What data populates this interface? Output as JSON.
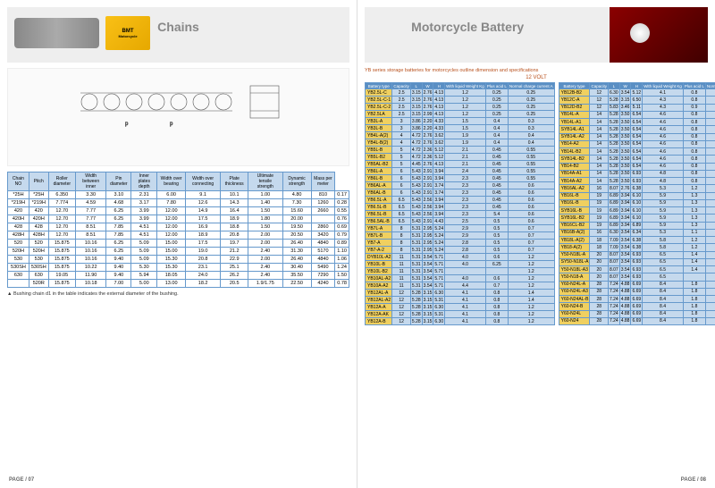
{
  "left": {
    "title": "Chains",
    "logo_main": "BMT",
    "logo_sub": "Motorcycle",
    "chain_headers": [
      "Chain NO",
      "Pitch",
      "Roller diameter",
      "Width between inner",
      "Pin diameter",
      "Inner plates depth",
      "Width over bearing",
      "Width over connecting",
      "Plate thickness",
      "Ultimate tensile strength",
      "Dynamic strength",
      "Mass per meter"
    ],
    "chain_sub": [
      "ISO JCAS",
      "MBT",
      "p",
      "d1 max",
      "Plates B1 min",
      "d2 max",
      "h2 max",
      "Pins L max",
      "Pins Lc max",
      "t/T",
      "Fu min kN",
      "Fd min N",
      "q kg/m"
    ],
    "chain_units": [
      "",
      "",
      "mm",
      "mm",
      "mm",
      "mm",
      "mm",
      "mm",
      "mm",
      "mm",
      "",
      "",
      ""
    ],
    "chain_rows": [
      [
        "*25H",
        "*25H",
        "6.350",
        "3.30",
        "3.10",
        "2.31",
        "6.00",
        "9.1",
        "10.1",
        "1.00",
        "4.80",
        "810",
        "0.17"
      ],
      [
        "*219H",
        "*219H",
        "7.774",
        "4.59",
        "4.68",
        "3.17",
        "7.80",
        "12.6",
        "14.3",
        "1.40",
        "7.30",
        "1260",
        "0.28"
      ],
      [
        "420",
        "420",
        "12.70",
        "7.77",
        "6.25",
        "3.99",
        "12.00",
        "14.9",
        "16.4",
        "1.50",
        "15.60",
        "2660",
        "0.55"
      ],
      [
        "420H",
        "420H",
        "12.70",
        "7.77",
        "6.25",
        "3.99",
        "12.00",
        "17.5",
        "18.9",
        "1.80",
        "20.00",
        "",
        "0.76"
      ],
      [
        "428",
        "428",
        "12.70",
        "8.51",
        "7.85",
        "4.51",
        "12.00",
        "16.9",
        "18.8",
        "1.50",
        "19.50",
        "2860",
        "0.69"
      ],
      [
        "428H",
        "428H",
        "12.70",
        "8.51",
        "7.85",
        "4.51",
        "12.00",
        "18.9",
        "20.8",
        "2.00",
        "20.50",
        "3420",
        "0.79"
      ],
      [
        "520",
        "520",
        "15.875",
        "10.16",
        "6.25",
        "5.09",
        "15.00",
        "17.5",
        "19.7",
        "2.00",
        "26.40",
        "4840",
        "0.89"
      ],
      [
        "520H",
        "520H",
        "15.875",
        "10.16",
        "6.25",
        "5.09",
        "15.00",
        "19.0",
        "21.2",
        "2.40",
        "31.30",
        "5170",
        "1.10"
      ],
      [
        "530",
        "530",
        "15.875",
        "10.16",
        "9.40",
        "5.09",
        "15.30",
        "20.8",
        "22.9",
        "2.00",
        "26.40",
        "4840",
        "1.06"
      ],
      [
        "530SH",
        "530SH",
        "15.875",
        "10.22",
        "9.40",
        "5.30",
        "15.30",
        "23.1",
        "25.1",
        "2.40",
        "30.40",
        "5490",
        "1.24"
      ],
      [
        "630",
        "630",
        "19.05",
        "11.90",
        "9.40",
        "5.94",
        "18.05",
        "24.0",
        "26.2",
        "2.40",
        "35.50",
        "7290",
        "1.50"
      ],
      [
        "",
        "520R",
        "15.875",
        "10.18",
        "7.00",
        "5.00",
        "13.00",
        "18.2",
        "20.5",
        "1.9/1.75",
        "22.50",
        "4240",
        "0.78"
      ]
    ],
    "footnote": "▲  Bushing chain d1 in the table indicates the external diameter of the bushing.",
    "pagenum": "PAGE / 07"
  },
  "right": {
    "title": "Motorcycle Battery",
    "subtitle": "YB series storage batteries for motorcycles outline dimension and specifications",
    "volt": "12 VOLT",
    "batt_headers": [
      "Battery type",
      "Capacity",
      "L",
      "W",
      "H",
      "With liquid Weight Kg",
      "Plus acid L",
      "Normal charge current A"
    ],
    "batt_left": [
      [
        "YB2.5L-C",
        "2.5",
        "3.15",
        "2.76",
        "4.13",
        "1.2",
        "0.25",
        "0.25"
      ],
      [
        "YB2.5L-C-1",
        "2.5",
        "3.15",
        "2.76",
        "4.13",
        "1.2",
        "0.25",
        "0.25"
      ],
      [
        "YB2.5L-C-2",
        "2.5",
        "3.15",
        "2.76",
        "4.13",
        "1.2",
        "0.25",
        "0.25"
      ],
      [
        "YB2.5LA",
        "2.5",
        "3.15",
        "2.99",
        "4.13",
        "1.2",
        "0.25",
        "0.25"
      ],
      [
        "YB3L-A",
        "3",
        "3.86",
        "2.20",
        "4.33",
        "1.5",
        "0.4",
        "0.3"
      ],
      [
        "YB3L-B",
        "3",
        "3.86",
        "2.20",
        "4.33",
        "1.5",
        "0.4",
        "0.3"
      ],
      [
        "YB4L-A(2)",
        "4",
        "4.72",
        "2.76",
        "3.62",
        "1.9",
        "0.4",
        "0.4"
      ],
      [
        "YB4L-B(2)",
        "4",
        "4.72",
        "2.76",
        "3.62",
        "1.9",
        "0.4",
        "0.4"
      ],
      [
        "YB5L-B",
        "5",
        "4.72",
        "2.36",
        "5.12",
        "2.1",
        "0.45",
        "0.55"
      ],
      [
        "YB5L-B2",
        "5",
        "4.72",
        "2.36",
        "5.12",
        "2.1",
        "0.45",
        "0.55"
      ],
      [
        "YB5AL-B2",
        "5",
        "4.45",
        "2.76",
        "4.13",
        "2.1",
        "0.45",
        "0.55"
      ],
      [
        "YB6L-A",
        "6",
        "5.43",
        "2.91",
        "3.94",
        "2.4",
        "0.45",
        "0.55"
      ],
      [
        "YB6L-B",
        "6",
        "5.43",
        "2.91",
        "3.94",
        "2.3",
        "0.45",
        "0.55"
      ],
      [
        "YB6AL-A",
        "6",
        "5.43",
        "2.91",
        "3.74",
        "2.3",
        "0.45",
        "0.6"
      ],
      [
        "YB6AL-B",
        "6",
        "5.43",
        "2.91",
        "3.74",
        "2.3",
        "0.45",
        "0.6"
      ],
      [
        "YB6.5L-A",
        "6.5",
        "5.43",
        "2.56",
        "3.94",
        "2.3",
        "0.45",
        "0.6"
      ],
      [
        "YB6.5L-B",
        "6.5",
        "5.43",
        "2.56",
        "3.94",
        "2.3",
        "0.45",
        "0.6"
      ],
      [
        "YB6.5L-B",
        "6.5",
        "5.43",
        "2.56",
        "3.94",
        "2.3",
        "5.4",
        "0.6"
      ],
      [
        "YB6.5AL-B",
        "6.5",
        "5.43",
        "2.91",
        "4.43",
        "2.5",
        "0.5",
        "0.6"
      ],
      [
        "YB7L-A",
        "8",
        "5.31",
        "2.95",
        "5.24",
        "2.9",
        "0.5",
        "0.7"
      ],
      [
        "YB7L-B",
        "8",
        "5.31",
        "2.95",
        "5.24",
        "2.9",
        "0.5",
        "0.7"
      ],
      [
        "YB7-A",
        "8",
        "5.31",
        "2.95",
        "5.24",
        "2.8",
        "0.5",
        "0.7"
      ],
      [
        "YB7-A-2",
        "8",
        "5.31",
        "2.95",
        "5.24",
        "2.8",
        "0.5",
        "0.7"
      ],
      [
        "DYB10L-A2",
        "11",
        "5.31",
        "3.54",
        "5.71",
        "4.0",
        "0.6",
        "1.2"
      ],
      [
        "YB10L-B",
        "11",
        "5.31",
        "3.54",
        "5.71",
        "4.0",
        "6.25",
        "1.2"
      ],
      [
        "YB10L-B2",
        "11",
        "5.31",
        "3.54",
        "5.71",
        "",
        "",
        "1.2"
      ],
      [
        "YB10AL-A2",
        "11",
        "5.31",
        "3.54",
        "5.71",
        "4.0",
        "0.6",
        "1.2"
      ],
      [
        "YB10A-A2",
        "11",
        "5.31",
        "3.54",
        "5.71",
        "4.4",
        "0.7",
        "1.2"
      ],
      [
        "YB12AL-A",
        "12",
        "5.28",
        "3.15",
        "6.30",
        "4.1",
        "0.8",
        "1.4"
      ],
      [
        "YB12AL-A2",
        "12",
        "5.28",
        "3.15",
        "5.31",
        "4.1",
        "0.8",
        "1.4"
      ],
      [
        "YB12A-A",
        "12",
        "5.28",
        "3.15",
        "6.30",
        "4.1",
        "0.8",
        "1.2"
      ],
      [
        "YB12A-AK",
        "12",
        "5.28",
        "3.15",
        "5.31",
        "4.1",
        "0.8",
        "1.2"
      ],
      [
        "YB12A-B",
        "12",
        "5.28",
        "3.15",
        "6.30",
        "4.1",
        "0.8",
        "1.2"
      ]
    ],
    "batt_right": [
      [
        "YB12B-B2",
        "12",
        "6.30",
        "3.54",
        "5.12",
        "4.1",
        "0.8",
        "1.2"
      ],
      [
        "YB12C-A",
        "12",
        "5.28",
        "3.15",
        "6.50",
        "4.3",
        "0.8",
        "1.2"
      ],
      [
        "YB12D-B2",
        "12",
        "5.83",
        "3.46",
        "5.11",
        "4.3",
        "0.9",
        "1.4"
      ],
      [
        "YB14L-A",
        "14",
        "5.28",
        "3.50",
        "6.54",
        "4.6",
        "0.8",
        "1.4"
      ],
      [
        "YB14L-A1",
        "14",
        "5.28",
        "3.50",
        "6.54",
        "4.6",
        "0.8",
        "1.4"
      ],
      [
        "SYB14L-A1",
        "14",
        "5.28",
        "3.50",
        "6.54",
        "4.6",
        "0.8",
        "1.4"
      ],
      [
        "SYB14L-A2",
        "14",
        "5.28",
        "3.50",
        "6.54",
        "4.6",
        "0.8",
        "1.4"
      ],
      [
        "YB14-A2",
        "14",
        "5.28",
        "3.50",
        "6.54",
        "4.6",
        "0.8",
        "1.4"
      ],
      [
        "YB14L-B2",
        "14",
        "5.28",
        "3.50",
        "6.54",
        "4.6",
        "0.8",
        "1.4"
      ],
      [
        "SYB14L-B2",
        "14",
        "5.28",
        "3.50",
        "6.54",
        "4.6",
        "0.8",
        "1.4"
      ],
      [
        "YB14-B2",
        "14",
        "5.28",
        "3.50",
        "6.54",
        "4.6",
        "0.8",
        "1.4"
      ],
      [
        "YB14A-A1",
        "14",
        "5.28",
        "3.50",
        "6.93",
        "4.8",
        "0.8",
        "1.4"
      ],
      [
        "YB14A-A2",
        "14",
        "5.28",
        "3.50",
        "6.93",
        "4.8",
        "0.8",
        "1.4"
      ],
      [
        "YB16AL-A2",
        "16",
        "8.07",
        "2.76",
        "6.38",
        "5.3",
        "1.2",
        "1.6"
      ],
      [
        "YB16L-B",
        "19",
        "6.89",
        "3.94",
        "6.10",
        "5.9",
        "1.3",
        "1.8"
      ],
      [
        "YB16L-B",
        "19",
        "6.89",
        "3.94",
        "6.10",
        "5.9",
        "1.3",
        "1.8"
      ],
      [
        "SYB16L-B",
        "19",
        "6.89",
        "3.94",
        "6.10",
        "5.9",
        "1.3",
        "1.8"
      ],
      [
        "SYB16L-B2",
        "19",
        "6.89",
        "3.94",
        "6.10",
        "5.9",
        "1.3",
        "1.8"
      ],
      [
        "YB16CL-B2",
        "19",
        "6.89",
        "3.94",
        "6.89",
        "5.9",
        "1.3",
        "1.9"
      ],
      [
        "YB16B-A(2)",
        "16",
        "6.30",
        "3.54",
        "6.34",
        "5.3",
        "1.1",
        "1.6"
      ],
      [
        "YB18L-A(2)",
        "18",
        "7.09",
        "3.54",
        "6.38",
        "5.8",
        "1.2",
        "1.8"
      ],
      [
        "YB18-A(2)",
        "18",
        "7.09",
        "3.54",
        "6.38",
        "5.8",
        "1.2",
        "1.8"
      ],
      [
        "Y50-N18L-A",
        "20",
        "8.07",
        "3.54",
        "6.93",
        "6.5",
        "1.4",
        "2.0"
      ],
      [
        "SY50-N18L-A",
        "20",
        "8.07",
        "3.54",
        "6.93",
        "6.5",
        "1.4",
        "2.0"
      ],
      [
        "Y50-N18L-A3",
        "20",
        "8.07",
        "3.54",
        "6.93",
        "6.5",
        "1.4",
        "2.0"
      ],
      [
        "Y50-N18-A",
        "20",
        "8.07",
        "3.54",
        "6.93",
        "6.5",
        "",
        "2.0"
      ],
      [
        "Y60-N24L-A",
        "28",
        "7.24",
        "4.88",
        "6.69",
        "8.4",
        "1.8",
        "2.8"
      ],
      [
        "Y60-N24L-A3",
        "28",
        "7.24",
        "4.88",
        "6.69",
        "8.4",
        "1.8",
        "2.8"
      ],
      [
        "Y60-N24AL-B",
        "28",
        "7.24",
        "4.88",
        "6.69",
        "8.4",
        "1.8",
        "2.6"
      ],
      [
        "Y60-N24-B",
        "28",
        "7.24",
        "4.88",
        "6.69",
        "8.4",
        "1.8",
        "2.8"
      ],
      [
        "Y60-N24L",
        "28",
        "7.24",
        "4.88",
        "6.69",
        "8.4",
        "1.8",
        "2.8"
      ],
      [
        "Y60-N24",
        "28",
        "7.24",
        "4.88",
        "6.69",
        "8.4",
        "1.8",
        "2.8"
      ]
    ],
    "pagenum": "PAGE / 08"
  }
}
